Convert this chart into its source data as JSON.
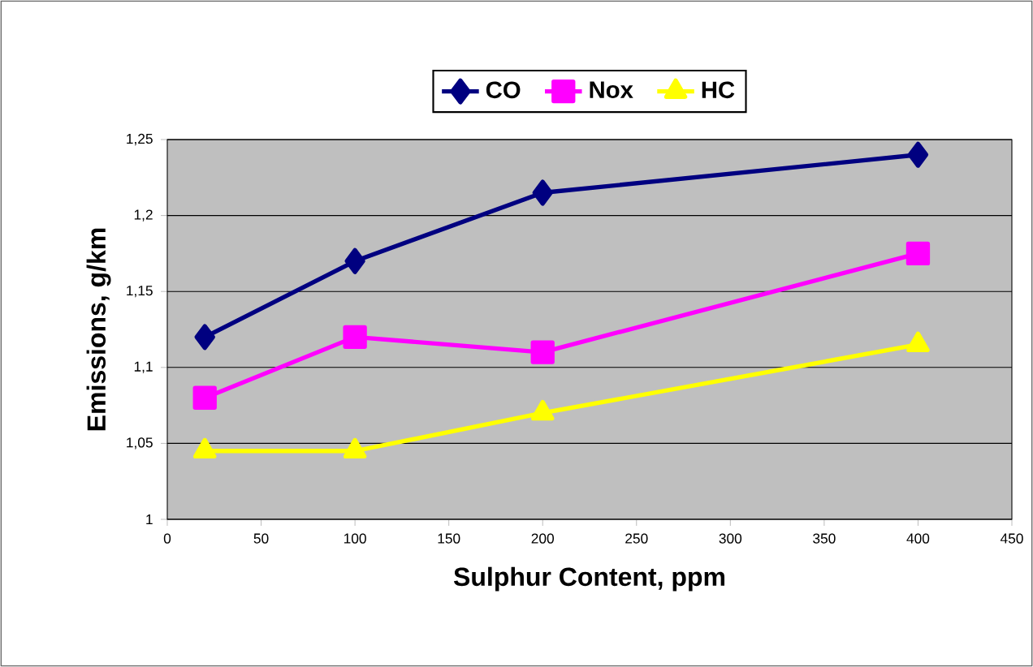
{
  "chart_data": {
    "type": "line",
    "xlabel": "Sulphur Content, ppm",
    "ylabel": "Emissions, g/km",
    "x": [
      20,
      100,
      200,
      400
    ],
    "series": [
      {
        "name": "CO",
        "color": "#000080",
        "marker": "diamond",
        "values": [
          1.12,
          1.17,
          1.215,
          1.24
        ]
      },
      {
        "name": "Nox",
        "color": "#ff00ff",
        "marker": "square",
        "values": [
          1.08,
          1.12,
          1.11,
          1.175
        ]
      },
      {
        "name": "HC",
        "color": "#ffff00",
        "marker": "triangle",
        "values": [
          1.045,
          1.045,
          1.07,
          1.115
        ]
      }
    ],
    "xlim": [
      0,
      450
    ],
    "xticks": [
      0,
      50,
      100,
      150,
      200,
      250,
      300,
      350,
      400,
      450
    ],
    "ylim": [
      1,
      1.25
    ],
    "yticks": [
      {
        "value": 1,
        "label": "1"
      },
      {
        "value": 1.05,
        "label": "1,05"
      },
      {
        "value": 1.1,
        "label": "1,1"
      },
      {
        "value": 1.15,
        "label": "1,15"
      },
      {
        "value": 1.2,
        "label": "1,2"
      },
      {
        "value": 1.25,
        "label": "1,25"
      }
    ],
    "grid": "y",
    "legend": "top"
  }
}
